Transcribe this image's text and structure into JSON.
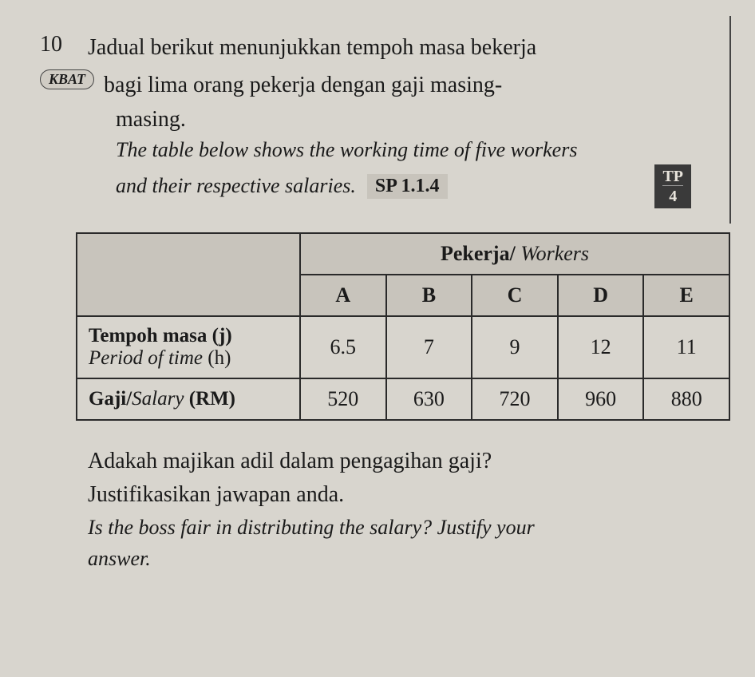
{
  "question": {
    "number": "10",
    "line1": "Jadual berikut menunjukkan tempoh masa bekerja",
    "line2": "bagi lima orang pekerja dengan gaji masing-",
    "line3": "masing.",
    "english1": "The table below shows the working time of five workers",
    "english2": "and their respective salaries.",
    "kbat_label": "KBAT",
    "sp_label": "SP 1.1.4",
    "tp_label": "TP",
    "tp_number": "4"
  },
  "table": {
    "workers_header": "Pekerja/",
    "workers_header_italic": "Workers",
    "columns": [
      "A",
      "B",
      "C",
      "D",
      "E"
    ],
    "row1_label_bold": "Tempoh masa (j)",
    "row1_label_italic": "Period of time",
    "row1_label_suffix": " (h)",
    "row1_values": [
      "6.5",
      "7",
      "9",
      "12",
      "11"
    ],
    "row2_label_bold": "Gaji/",
    "row2_label_italic": "Salary",
    "row2_label_suffix": " (RM)",
    "row2_values": [
      "520",
      "630",
      "720",
      "960",
      "880"
    ]
  },
  "footer": {
    "malay1": "Adakah majikan adil dalam pengagihan gaji?",
    "malay2": "Justifikasikan jawapan anda.",
    "english1": "Is the boss fair in distributing the salary? Justify your",
    "english2": "answer."
  },
  "colors": {
    "background": "#d8d5ce",
    "text": "#1a1a1a",
    "table_border": "#2a2a2a",
    "header_bg": "#c8c4bc",
    "tp_bg": "#3a3a3a",
    "tp_text": "#e8e4dc"
  }
}
